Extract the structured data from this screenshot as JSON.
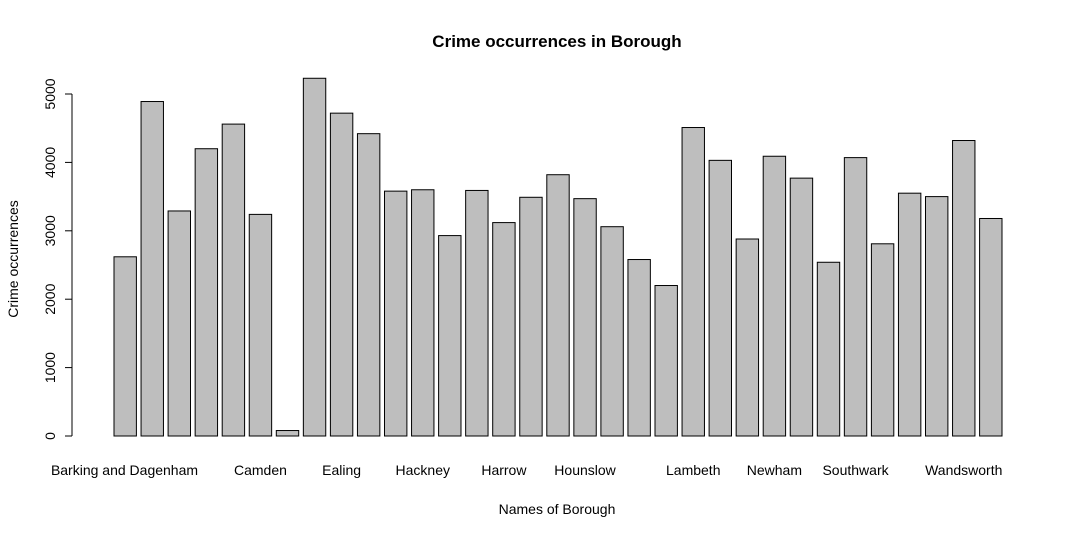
{
  "chart_data": {
    "type": "bar",
    "title": "Crime occurrences in Borough",
    "xlabel": "Names of Borough",
    "ylabel": "Crime occurrences",
    "ylim": [
      0,
      5300
    ],
    "yticks": [
      0,
      1000,
      2000,
      3000,
      4000,
      5000
    ],
    "yticklabels": [
      "0",
      "1000",
      "2000",
      "3000",
      "4000",
      "5000"
    ],
    "xticklabels": [
      "Barking and Dagenham",
      "Camden",
      "Ealing",
      "Hackney",
      "Harrow",
      "Hounslow",
      "Lambeth",
      "Newham",
      "Southwark",
      "Wandsworth"
    ],
    "values": [
      2620,
      4890,
      3290,
      4200,
      4560,
      3240,
      80,
      5230,
      4720,
      4420,
      3580,
      3600,
      2930,
      3590,
      3120,
      3490,
      3820,
      3470,
      3060,
      2580,
      2200,
      4510,
      4030,
      2880,
      4090,
      3770,
      2540,
      4070,
      2810,
      3550,
      3500,
      4320,
      3180
    ],
    "colors": {
      "bar": "#bebebe",
      "border": "#000000"
    },
    "grid": false
  }
}
